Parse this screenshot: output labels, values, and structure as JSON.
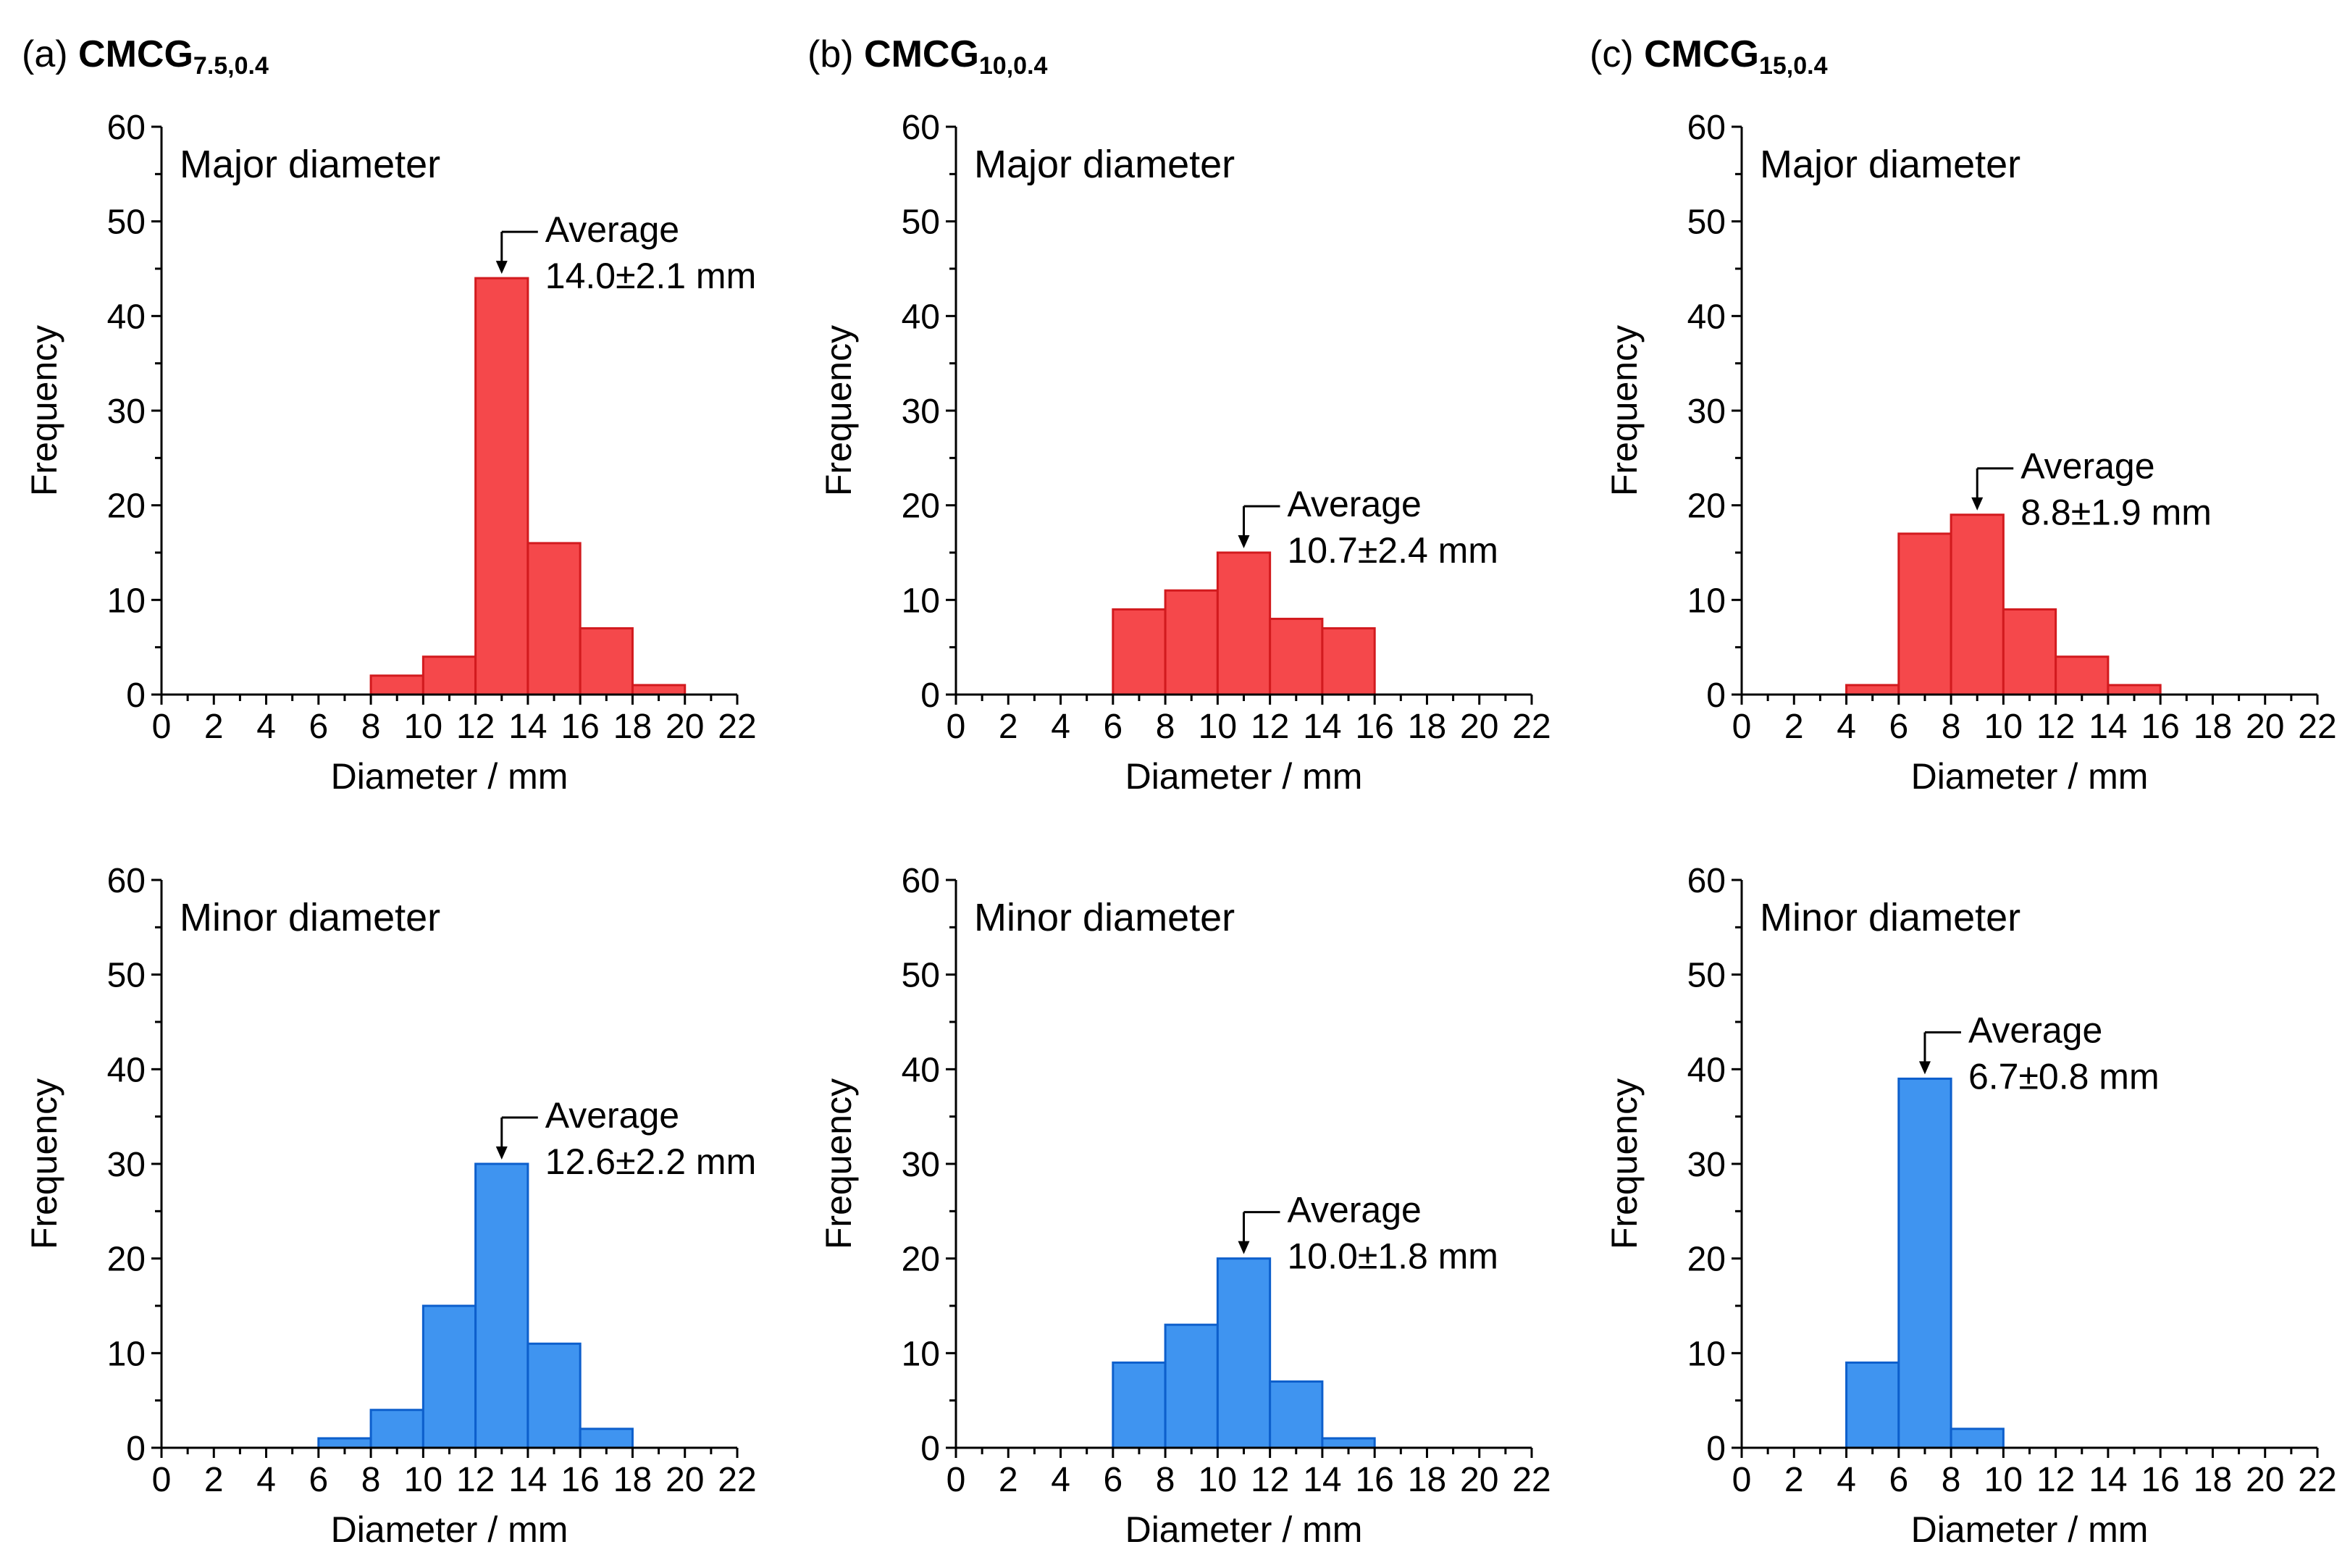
{
  "panels": [
    {
      "label": "(a)",
      "name": "CMCG",
      "sub": "7.5,0.4"
    },
    {
      "label": "(b)",
      "name": "CMCG",
      "sub": "10,0.4"
    },
    {
      "label": "(c)",
      "name": "CMCG",
      "sub": "15,0.4"
    }
  ],
  "colors": {
    "major_fill": "#f5484b",
    "major_edge": "#d21a1e",
    "minor_fill": "#3f94f0",
    "minor_edge": "#0d5fcc"
  },
  "chart_data": [
    {
      "id": "a-major",
      "type": "bar",
      "label": "Major diameter",
      "xlabel": "Diameter / mm",
      "ylabel": "Frequency",
      "xlim": [
        0,
        22
      ],
      "ylim": [
        0,
        60
      ],
      "xticks": [
        0,
        2,
        4,
        6,
        8,
        10,
        12,
        14,
        16,
        18,
        20,
        22
      ],
      "yticks": [
        0,
        10,
        20,
        30,
        40,
        50,
        60
      ],
      "bin_width": 2,
      "bins": [
        8,
        10,
        12,
        14,
        16,
        18
      ],
      "values": [
        2,
        4,
        44,
        16,
        7,
        1
      ],
      "average": {
        "title": "Average",
        "value": "14.0±2.1 mm",
        "at": 13
      },
      "series": "major"
    },
    {
      "id": "b-major",
      "type": "bar",
      "label": "Major diameter",
      "xlabel": "Diameter / mm",
      "ylabel": "Frequency",
      "xlim": [
        0,
        22
      ],
      "ylim": [
        0,
        60
      ],
      "xticks": [
        0,
        2,
        4,
        6,
        8,
        10,
        12,
        14,
        16,
        18,
        20,
        22
      ],
      "yticks": [
        0,
        10,
        20,
        30,
        40,
        50,
        60
      ],
      "bin_width": 2,
      "bins": [
        6,
        8,
        10,
        12,
        14
      ],
      "values": [
        9,
        11,
        15,
        8,
        7
      ],
      "average": {
        "title": "Average",
        "value": "10.7±2.4 mm",
        "at": 11
      },
      "series": "major"
    },
    {
      "id": "c-major",
      "type": "bar",
      "label": "Major diameter",
      "xlabel": "Diameter / mm",
      "ylabel": "Frequency",
      "xlim": [
        0,
        22
      ],
      "ylim": [
        0,
        60
      ],
      "xticks": [
        0,
        2,
        4,
        6,
        8,
        10,
        12,
        14,
        16,
        18,
        20,
        22
      ],
      "yticks": [
        0,
        10,
        20,
        30,
        40,
        50,
        60
      ],
      "bin_width": 2,
      "bins": [
        4,
        6,
        8,
        10,
        12,
        14
      ],
      "values": [
        1,
        17,
        19,
        9,
        4,
        1
      ],
      "average": {
        "title": "Average",
        "value": "8.8±1.9 mm",
        "at": 9
      },
      "series": "major"
    },
    {
      "id": "a-minor",
      "type": "bar",
      "label": "Minor diameter",
      "xlabel": "Diameter / mm",
      "ylabel": "Frequency",
      "xlim": [
        0,
        22
      ],
      "ylim": [
        0,
        60
      ],
      "xticks": [
        0,
        2,
        4,
        6,
        8,
        10,
        12,
        14,
        16,
        18,
        20,
        22
      ],
      "yticks": [
        0,
        10,
        20,
        30,
        40,
        50,
        60
      ],
      "bin_width": 2,
      "bins": [
        6,
        8,
        10,
        12,
        14,
        16
      ],
      "values": [
        1,
        4,
        15,
        30,
        11,
        2
      ],
      "average": {
        "title": "Average",
        "value": "12.6±2.2 mm",
        "at": 13
      },
      "series": "minor"
    },
    {
      "id": "b-minor",
      "type": "bar",
      "label": "Minor diameter",
      "xlabel": "Diameter / mm",
      "ylabel": "Frequency",
      "xlim": [
        0,
        22
      ],
      "ylim": [
        0,
        60
      ],
      "xticks": [
        0,
        2,
        4,
        6,
        8,
        10,
        12,
        14,
        16,
        18,
        20,
        22
      ],
      "yticks": [
        0,
        10,
        20,
        30,
        40,
        50,
        60
      ],
      "bin_width": 2,
      "bins": [
        6,
        8,
        10,
        12,
        14
      ],
      "values": [
        9,
        13,
        20,
        7,
        1
      ],
      "average": {
        "title": "Average",
        "value": "10.0±1.8 mm",
        "at": 11
      },
      "series": "minor"
    },
    {
      "id": "c-minor",
      "type": "bar",
      "label": "Minor diameter",
      "xlabel": "Diameter / mm",
      "ylabel": "Frequency",
      "xlim": [
        0,
        22
      ],
      "ylim": [
        0,
        60
      ],
      "xticks": [
        0,
        2,
        4,
        6,
        8,
        10,
        12,
        14,
        16,
        18,
        20,
        22
      ],
      "yticks": [
        0,
        10,
        20,
        30,
        40,
        50,
        60
      ],
      "bin_width": 2,
      "bins": [
        4,
        6,
        8
      ],
      "values": [
        9,
        39,
        2
      ],
      "average": {
        "title": "Average",
        "value": "6.7±0.8 mm",
        "at": 7
      },
      "series": "minor"
    }
  ]
}
